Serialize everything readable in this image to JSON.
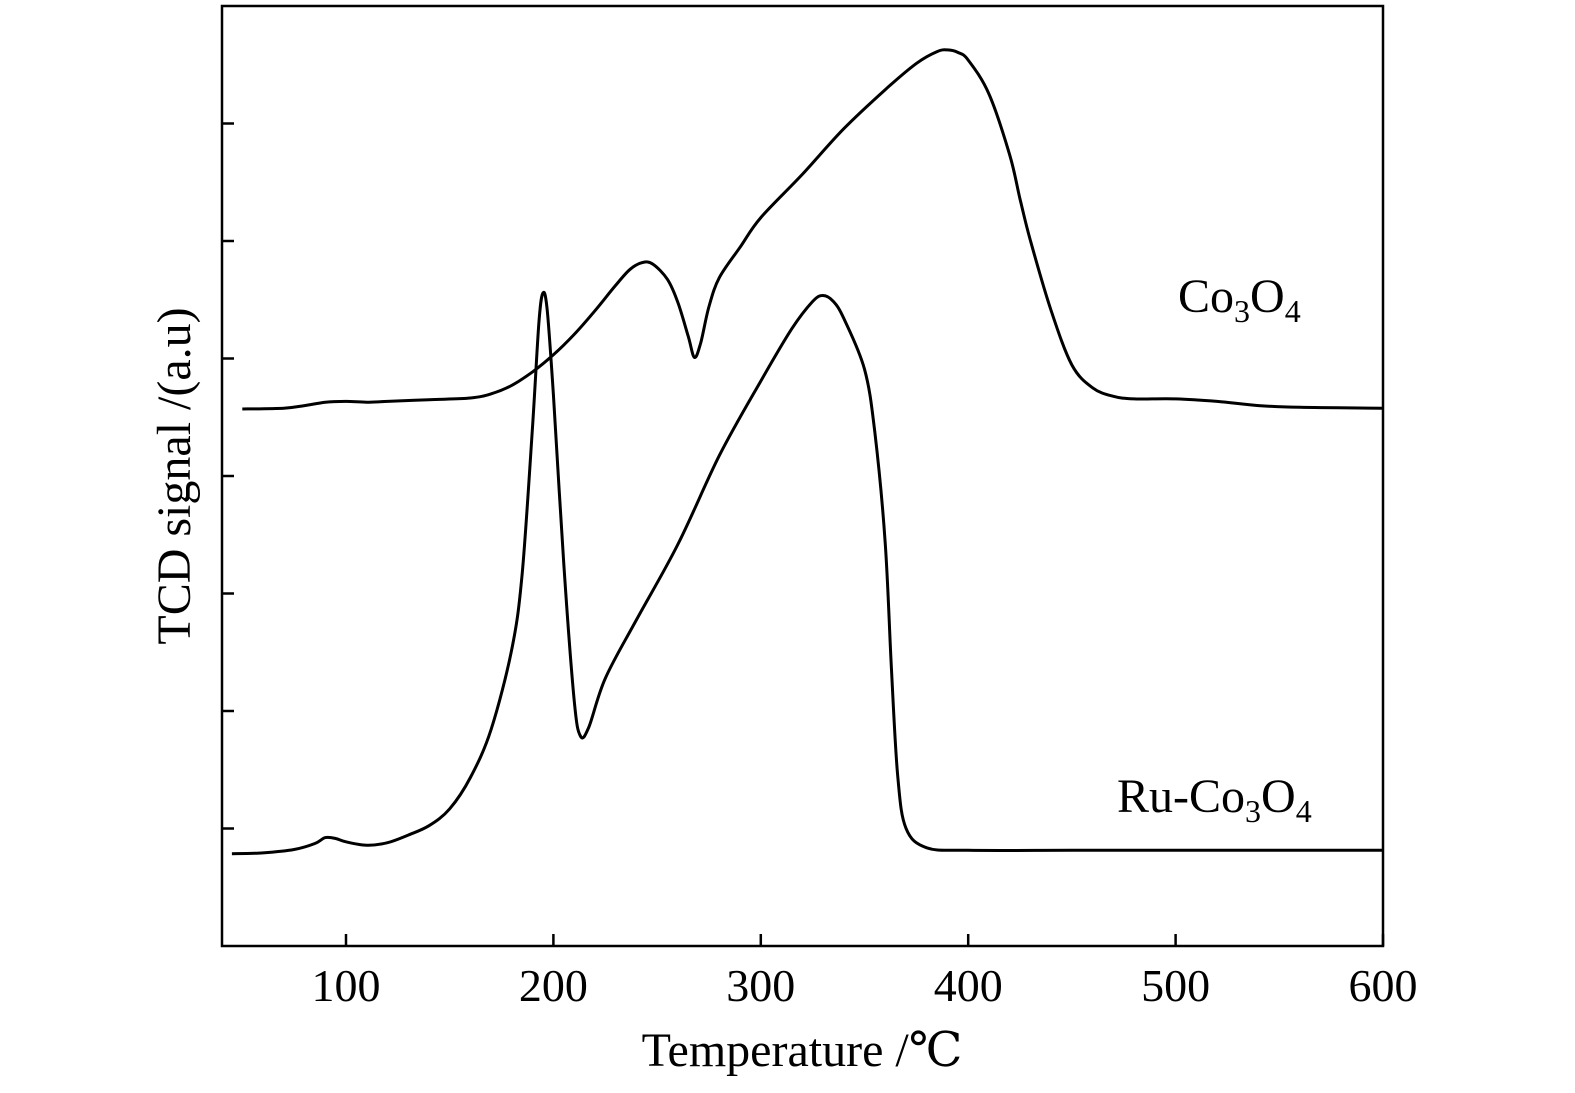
{
  "chart_data": {
    "type": "line",
    "xlabel": "Temperature /℃",
    "ylabel": "TCD signal /(a.u)",
    "xlim": [
      40,
      600
    ],
    "x_ticks": [
      100,
      200,
      300,
      400,
      500,
      600
    ],
    "ylim": [
      0,
      100
    ],
    "y_ticks_labeled": false,
    "grid": false,
    "series": [
      {
        "name": "Co3O4",
        "label_parts": [
          {
            "t": "Co",
            "sub": false
          },
          {
            "t": "3",
            "sub": true
          },
          {
            "t": "O",
            "sub": false
          },
          {
            "t": "4",
            "sub": true
          }
        ],
        "points": [
          [
            50,
            60.8
          ],
          [
            70,
            60.9
          ],
          [
            80,
            61.2
          ],
          [
            90,
            61.6
          ],
          [
            100,
            61.7
          ],
          [
            110,
            61.6
          ],
          [
            120,
            61.7
          ],
          [
            140,
            61.9
          ],
          [
            160,
            62.1
          ],
          [
            170,
            62.6
          ],
          [
            180,
            63.6
          ],
          [
            190,
            65.2
          ],
          [
            200,
            67.2
          ],
          [
            210,
            69.6
          ],
          [
            220,
            72.4
          ],
          [
            230,
            75.4
          ],
          [
            237,
            77.3
          ],
          [
            243,
            78.1
          ],
          [
            248,
            77.9
          ],
          [
            255,
            76.1
          ],
          [
            260,
            73.4
          ],
          [
            265,
            69.4
          ],
          [
            268,
            66.9
          ],
          [
            271,
            68.6
          ],
          [
            275,
            72.9
          ],
          [
            280,
            76.3
          ],
          [
            290,
            79.9
          ],
          [
            300,
            83.4
          ],
          [
            320,
            88.5
          ],
          [
            340,
            93.9
          ],
          [
            360,
            98.5
          ],
          [
            375,
            101.6
          ],
          [
            385,
            103.0
          ],
          [
            390,
            103.2
          ],
          [
            395,
            102.9
          ],
          [
            400,
            102.0
          ],
          [
            410,
            98.0
          ],
          [
            420,
            90.8
          ],
          [
            425,
            85.6
          ],
          [
            430,
            80.7
          ],
          [
            440,
            72.4
          ],
          [
            450,
            66.0
          ],
          [
            460,
            63.3
          ],
          [
            470,
            62.3
          ],
          [
            480,
            62.0
          ],
          [
            500,
            62.0
          ],
          [
            520,
            61.7
          ],
          [
            540,
            61.2
          ],
          [
            560,
            61.0
          ],
          [
            600,
            60.9
          ]
        ]
      },
      {
        "name": "Ru-Co3O4",
        "label_parts": [
          {
            "t": "Ru-Co",
            "sub": false
          },
          {
            "t": "3",
            "sub": true
          },
          {
            "t": "O",
            "sub": false
          },
          {
            "t": "4",
            "sub": true
          }
        ],
        "points": [
          [
            45,
            8.3
          ],
          [
            60,
            8.4
          ],
          [
            75,
            8.8
          ],
          [
            85,
            9.5
          ],
          [
            90,
            10.2
          ],
          [
            95,
            10.1
          ],
          [
            100,
            9.7
          ],
          [
            110,
            9.3
          ],
          [
            120,
            9.6
          ],
          [
            130,
            10.5
          ],
          [
            140,
            11.6
          ],
          [
            150,
            13.6
          ],
          [
            160,
            17.3
          ],
          [
            170,
            23.0
          ],
          [
            180,
            32.5
          ],
          [
            185,
            41.5
          ],
          [
            190,
            59.0
          ],
          [
            193,
            71.0
          ],
          [
            195,
            74.5
          ],
          [
            197,
            72.5
          ],
          [
            200,
            62.5
          ],
          [
            205,
            42.5
          ],
          [
            210,
            26.5
          ],
          [
            213,
            22.2
          ],
          [
            217,
            23.2
          ],
          [
            225,
            29.0
          ],
          [
            240,
            35.9
          ],
          [
            260,
            44.8
          ],
          [
            280,
            55.3
          ],
          [
            300,
            64.1
          ],
          [
            315,
            70.3
          ],
          [
            325,
            73.5
          ],
          [
            330,
            74.2
          ],
          [
            335,
            73.5
          ],
          [
            340,
            71.5
          ],
          [
            350,
            65.5
          ],
          [
            355,
            58.0
          ],
          [
            360,
            45.0
          ],
          [
            363,
            30.0
          ],
          [
            366,
            17.5
          ],
          [
            370,
            11.3
          ],
          [
            380,
            9.0
          ],
          [
            400,
            8.7
          ],
          [
            450,
            8.7
          ],
          [
            500,
            8.7
          ],
          [
            600,
            8.7
          ]
        ]
      }
    ]
  }
}
